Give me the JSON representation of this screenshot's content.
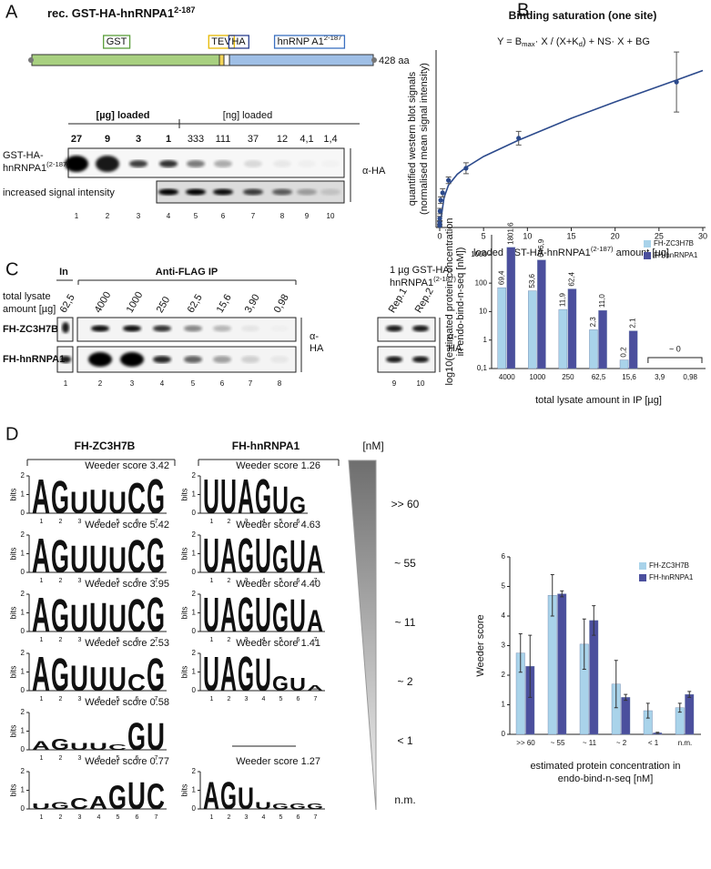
{
  "panel_a": {
    "label": "A",
    "title": [
      "rec. GST-HA-hnRNPA1",
      "2-187"
    ],
    "domains": [
      [
        "GST"
      ],
      [
        "TEV"
      ],
      [
        "HA"
      ],
      [
        "hnRNP A1",
        "2-187"
      ]
    ],
    "length": "428 aa",
    "ug_header": "[µg] loaded",
    "ng_header": "[ng] loaded",
    "amounts": [
      "27",
      "9",
      "3",
      "1",
      "333",
      "111",
      "37",
      "12",
      "4,1",
      "1,4"
    ],
    "row1_line1": "GST-HA-",
    "row1_line2": [
      "hnRNPA1",
      "(2-187)"
    ],
    "row2_label": "increased signal intensity",
    "antibody": "α-HA",
    "lanes": [
      1,
      2,
      3,
      4,
      5,
      6,
      7,
      8,
      9,
      10
    ]
  },
  "panel_c": {
    "label": "C",
    "input": "In",
    "ip": "Anti-FLAG IP",
    "lysate_label": [
      "total lysate",
      "amount [µg]"
    ],
    "amounts": [
      "62,5",
      "4000",
      "1000",
      "250",
      "62,5",
      "15,6",
      "3,90",
      "0,98"
    ],
    "rows": [
      "FH-ZC3H7B",
      "FH-hnRNPA1"
    ],
    "antibody": [
      "α-",
      "HA"
    ],
    "lanes": [
      1,
      2,
      3,
      4,
      5,
      6,
      7,
      8,
      9,
      10
    ],
    "control_line1": "1 µg GST-HA-",
    "control_line2": [
      "hnRNPA1",
      "(2-187)"
    ],
    "reps": [
      "Rep.1",
      "Rep.2"
    ]
  },
  "panel_d": {
    "label": "D",
    "headers": [
      "FH-ZC3H7B",
      "FH-hnRNPA1"
    ],
    "unit": "[nM]",
    "concentrations": [
      ">> 60",
      "~ 55",
      "~ 11",
      "~ 2",
      "< 1",
      "n.m."
    ],
    "axis_label": "bits",
    "bits_ticks": [
      0,
      1,
      2
    ],
    "positions": [
      1,
      2,
      3,
      4,
      5,
      6,
      7
    ],
    "letter_colors": {
      "A": "#5aa02c",
      "G": "#f2c80f",
      "U": "#c1272d",
      "C": "#2e6bb0"
    },
    "logos": [
      [
        {
          "score": "Weeder score 3.42",
          "letters": [
            "A",
            "G",
            "U",
            "U",
            "U",
            "C",
            "G"
          ],
          "heights": [
            1.9,
            1.8,
            1.2,
            1.3,
            1.2,
            1.7,
            1.9
          ]
        },
        {
          "score": "Weeder score 5.42",
          "letters": [
            "A",
            "G",
            "U",
            "U",
            "U",
            "C",
            "G"
          ],
          "heights": [
            1.9,
            1.8,
            1.5,
            1.5,
            1.4,
            1.8,
            1.9
          ]
        },
        {
          "score": "Weeder score 3.95",
          "letters": [
            "A",
            "G",
            "U",
            "U",
            "U",
            "C",
            "G"
          ],
          "heights": [
            1.9,
            1.8,
            1.5,
            1.6,
            1.5,
            1.8,
            1.9
          ]
        },
        {
          "score": "Weeder score 2.53",
          "letters": [
            "A",
            "G",
            "U",
            "U",
            "U",
            "C",
            "G"
          ],
          "heights": [
            1.9,
            1.8,
            1.4,
            1.3,
            1.3,
            0.9,
            1.8
          ]
        },
        {
          "score": "Weeder score 0.58",
          "letters": [
            "A",
            "G",
            "U",
            "U",
            "C",
            "G",
            "U"
          ],
          "heights": [
            0.5,
            0.6,
            0.4,
            0.4,
            0.3,
            1.5,
            1.5
          ]
        },
        {
          "score": "Weeder score 0.77",
          "letters": [
            "U",
            "G",
            "C",
            "A",
            "G",
            "U",
            "C"
          ],
          "heights": [
            0.3,
            0.4,
            0.6,
            0.7,
            1.3,
            1.5,
            1.4
          ]
        }
      ],
      [
        {
          "score": "Weeder score 1.26",
          "letters": [
            "U",
            "U",
            "A",
            "G",
            "U",
            "G"
          ],
          "heights": [
            1.9,
            1.9,
            1.9,
            1.9,
            1.5,
            0.9
          ]
        },
        {
          "score": "Weeder score 4.63",
          "letters": [
            "U",
            "A",
            "G",
            "U",
            "G",
            "U",
            "A"
          ],
          "heights": [
            1.9,
            1.9,
            1.9,
            1.9,
            1.5,
            1.8,
            1.5
          ]
        },
        {
          "score": "Weeder score 4.40",
          "letters": [
            "U",
            "A",
            "G",
            "U",
            "G",
            "U",
            "A"
          ],
          "heights": [
            1.9,
            1.9,
            1.9,
            1.9,
            1.6,
            1.8,
            1.2
          ]
        },
        {
          "score": "Weeder score 1.41",
          "letters": [
            "U",
            "A",
            "G",
            "U",
            "G",
            "U",
            "A"
          ],
          "heights": [
            1.9,
            1.9,
            1.9,
            1.8,
            0.8,
            0.7,
            0.3
          ]
        },
        null,
        {
          "score": "Weeder score 1.27",
          "letters": [
            "A",
            "G",
            "U",
            "U",
            "G",
            "G",
            "G"
          ],
          "heights": [
            1.5,
            1.5,
            1.2,
            0.4,
            0.3,
            0.3,
            0.3
          ]
        }
      ]
    ]
  },
  "chart_data": [
    {
      "type": "scatter",
      "label": "B",
      "title": "Binding saturation (one site)",
      "equation": [
        "Y = B",
        "max",
        "· X / (X+K",
        "d",
        ") + NS· X + BG"
      ],
      "xlabel": [
        "loaded GST-HA-hnRNPA1",
        "(2-187)",
        " amount [µg]"
      ],
      "ylabel": [
        "quantified western blot signals",
        "(normalised mean signal intensity)"
      ],
      "x": [
        0.0014,
        0.0041,
        0.012,
        0.037,
        0.111,
        0.333,
        1,
        3,
        9,
        27
      ],
      "series": [
        {
          "color": "#2c4a8c",
          "values": [
            0.07,
            0.17,
            0.33,
            0.6,
            1.0,
            1.27,
            1.73,
            2.17,
            3.27,
            5.33
          ],
          "errors": [
            0.03,
            0.05,
            0.08,
            0.1,
            0.12,
            0.15,
            0.12,
            0.2,
            0.25,
            1.1
          ]
        }
      ],
      "fit": {
        "color": "#2c4a8c",
        "x": [
          0,
          0.5,
          1,
          2,
          3,
          5,
          9,
          15,
          20,
          27,
          30
        ],
        "values": [
          0,
          1.1,
          1.55,
          1.95,
          2.2,
          2.6,
          3.2,
          4.0,
          4.6,
          5.4,
          5.75
        ]
      },
      "xlim": [
        0,
        30
      ],
      "xticks": [
        0,
        5,
        10,
        15,
        20,
        25,
        30
      ],
      "ylim": [
        0,
        6.5
      ]
    },
    {
      "type": "bar",
      "log_scale": true,
      "legend": "upper right",
      "ylabel": [
        "log10(estimated protein concentration",
        "in endo-bind-n-seq [nM])"
      ],
      "xlabel": [
        "total lysate amount in IP [µg]"
      ],
      "categories": [
        "4000",
        "1000",
        "250",
        "62,5",
        "15,6",
        "3,9",
        "0,98"
      ],
      "series": [
        {
          "name": "FH-ZC3H7B",
          "color": "#a9d3ea",
          "values": [
            69.4,
            53.6,
            11.9,
            2.3,
            0.2,
            null,
            null
          ],
          "value_labels": [
            "69,4",
            "53,6",
            "11,9",
            "2,3",
            "0,2",
            null,
            null
          ]
        },
        {
          "name": "FH-hnRNPA1",
          "color": "#4b4f9d",
          "values": [
            1801.6,
            646.9,
            62.4,
            11.0,
            2.1,
            null,
            null
          ],
          "value_labels": [
            "1801,6",
            "646,9",
            "62,4",
            "11,0",
            "2,1",
            null,
            null
          ]
        }
      ],
      "annotation": "~ 0",
      "ylim": [
        0.1,
        5000
      ],
      "yticks": [
        {
          "value": 0.1,
          "label": "0,1"
        },
        1,
        10,
        100,
        1000
      ]
    },
    {
      "type": "bar",
      "legend": "upper right",
      "ylabel": [
        "Weeder score"
      ],
      "xlabel": [
        "estimated protein concentration in",
        "endo-bind-n-seq [nM]"
      ],
      "categories": [
        ">> 60",
        "~ 55",
        "~ 11",
        "~ 2",
        "< 1",
        "n.m."
      ],
      "series": [
        {
          "name": "FH-ZC3H7B",
          "color": "#a9d3ea",
          "values": [
            2.75,
            4.7,
            3.05,
            1.7,
            0.8,
            0.9
          ],
          "errors": [
            0.65,
            0.7,
            0.85,
            0.8,
            0.25,
            0.15
          ]
        },
        {
          "name": "FH-hnRNPA1",
          "color": "#4b4f9d",
          "values": [
            2.3,
            4.75,
            3.85,
            1.25,
            0.05,
            1.35
          ],
          "errors": [
            1.05,
            0.1,
            0.5,
            0.1,
            0.02,
            0.1
          ]
        }
      ],
      "ylim": [
        0,
        6
      ],
      "yticks": [
        0,
        1,
        2,
        3,
        4,
        5,
        6
      ]
    }
  ]
}
